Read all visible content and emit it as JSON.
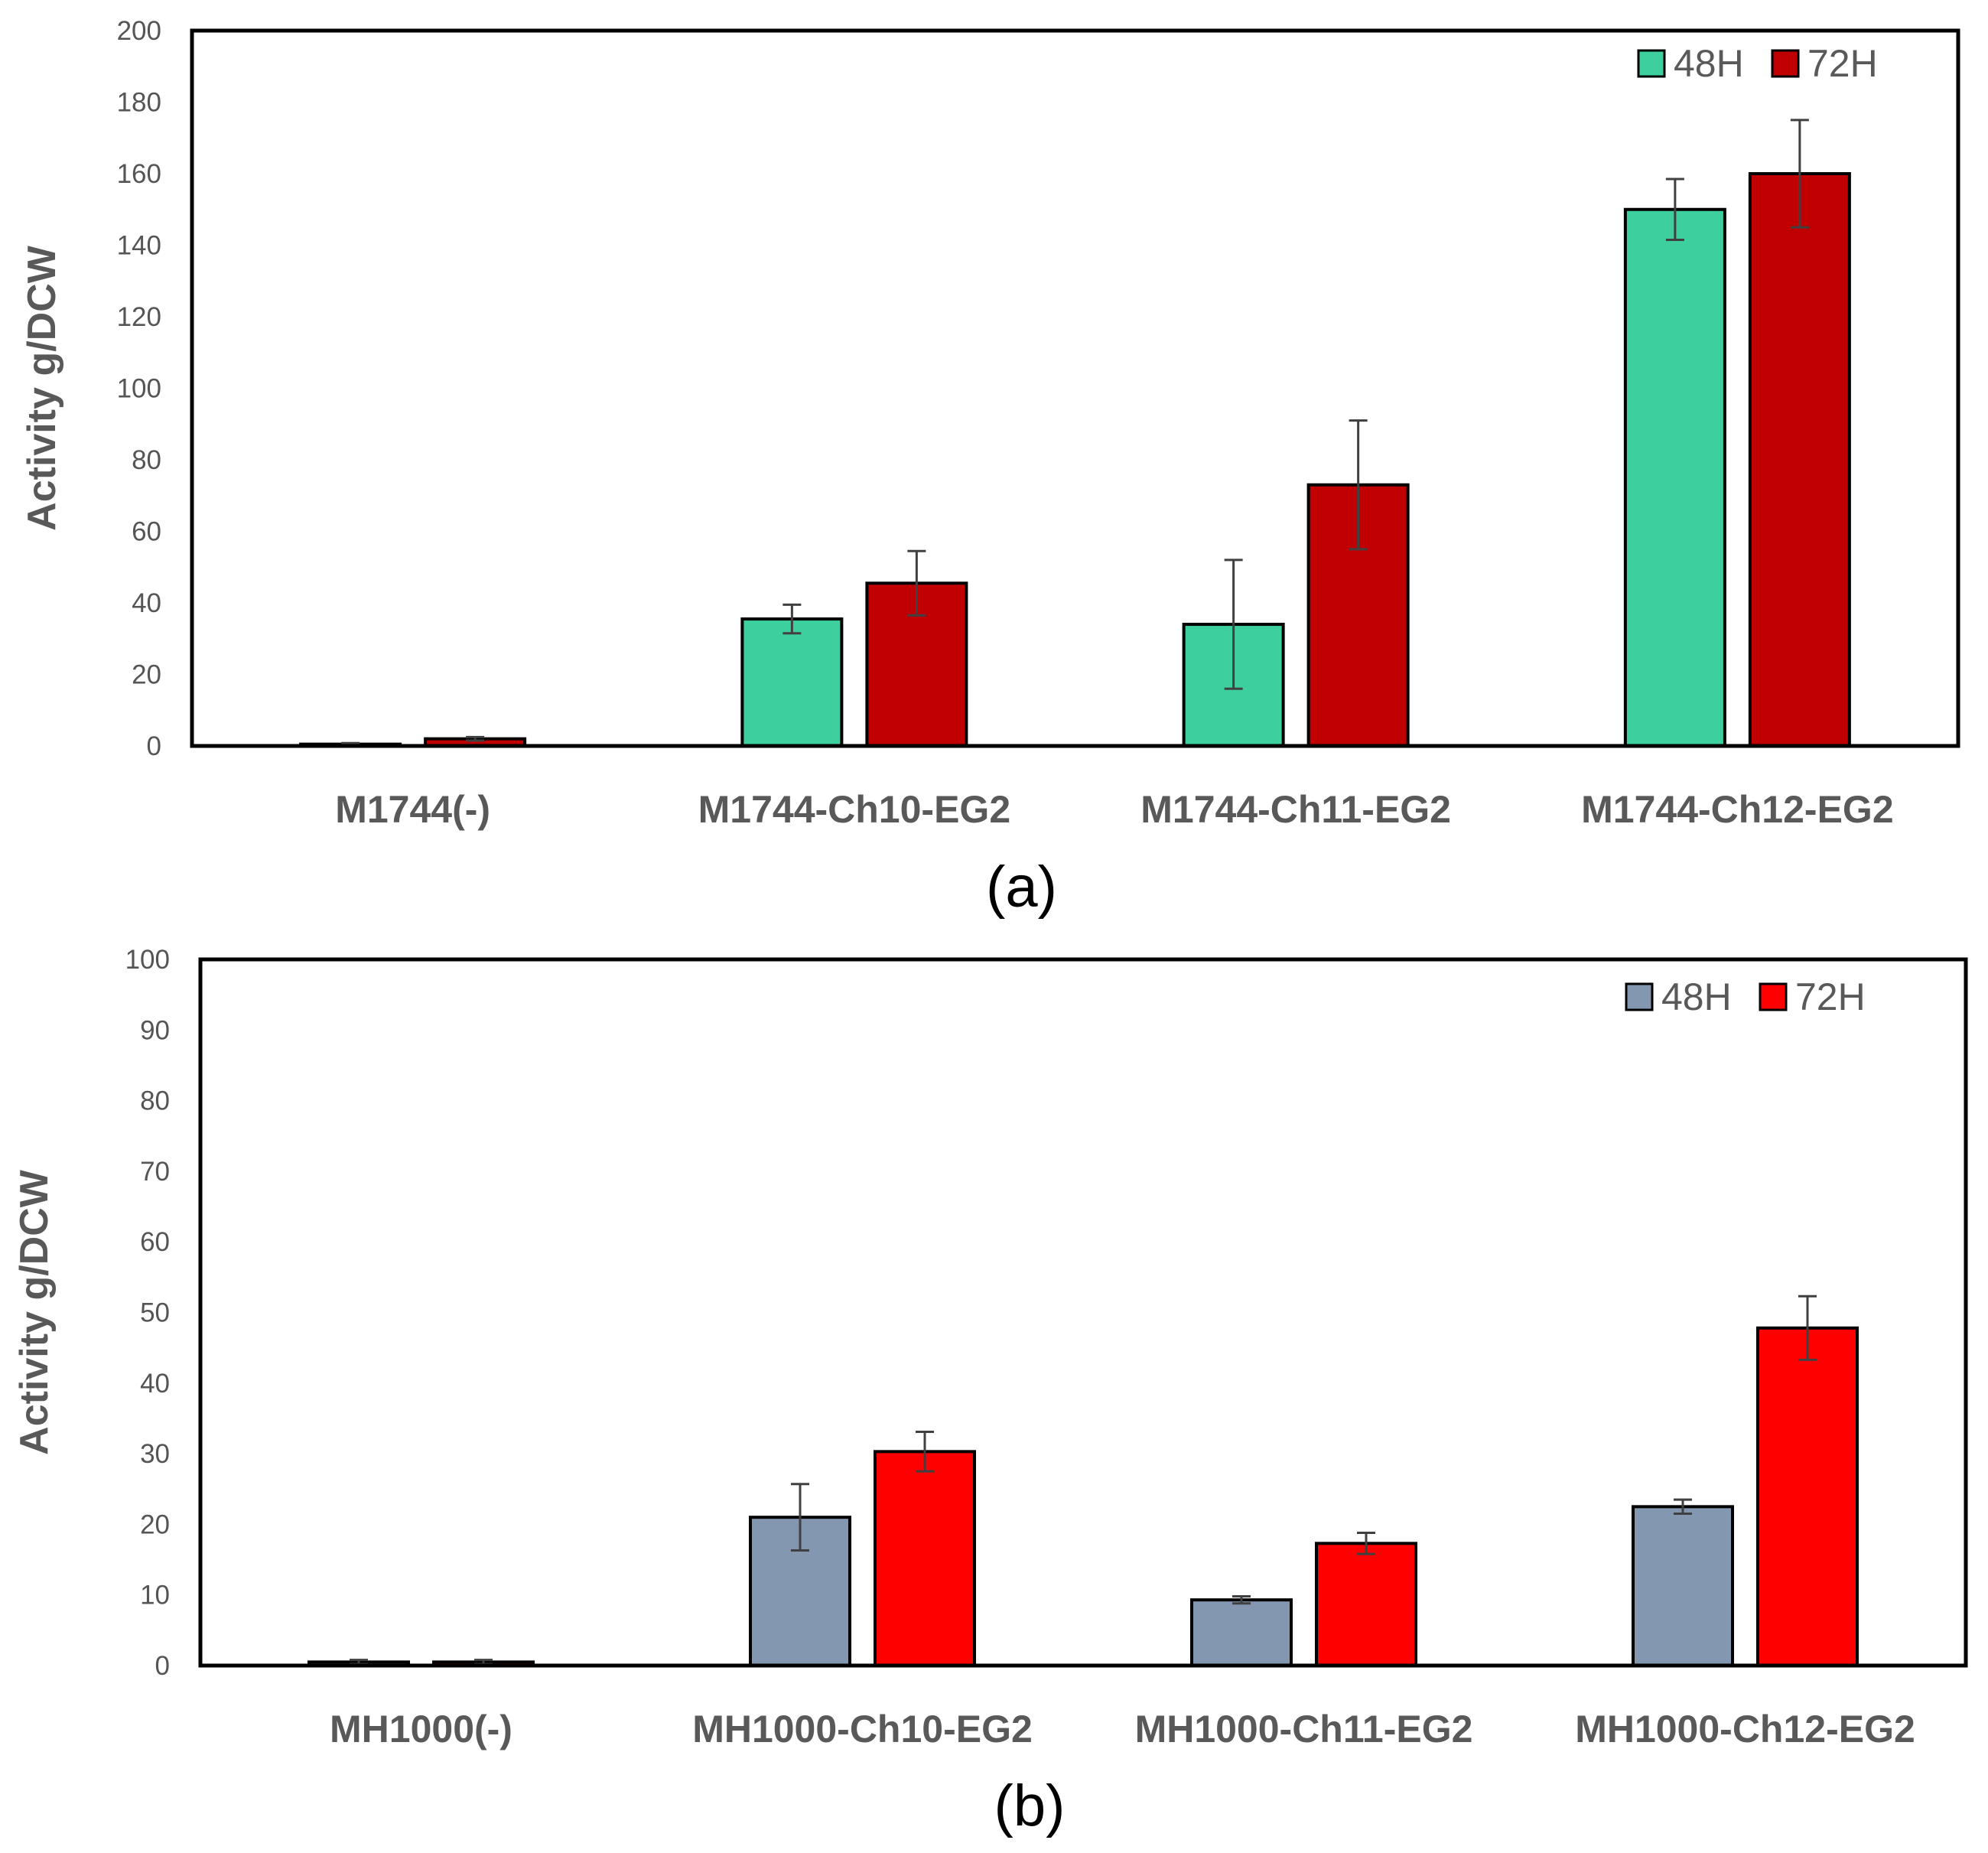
{
  "chart_data": [
    {
      "type": "bar",
      "panel_label": "(a)",
      "ylabel": "Activity g/DCW",
      "ylim": [
        0,
        200
      ],
      "yticks": [
        0,
        20,
        40,
        60,
        80,
        100,
        120,
        140,
        160,
        180,
        200
      ],
      "categories": [
        "M1744(-)",
        "M1744-Ch10-EG2",
        "M1744-Ch11-EG2",
        "M1744-Ch12-EG2"
      ],
      "legend_position": "top-right",
      "series": [
        {
          "name": "48H",
          "color": "#3ECF9E",
          "values": [
            0.5,
            35.5,
            34,
            150
          ],
          "errors": [
            0.3,
            4,
            18,
            8.5
          ]
        },
        {
          "name": "72H",
          "color": "#C00000",
          "values": [
            2,
            45.5,
            73,
            160
          ],
          "errors": [
            0.5,
            9,
            18,
            15
          ]
        }
      ]
    },
    {
      "type": "bar",
      "panel_label": "(b)",
      "ylabel": "Activity g/DCW",
      "ylim": [
        0,
        100
      ],
      "yticks": [
        0,
        10,
        20,
        30,
        40,
        50,
        60,
        70,
        80,
        90,
        100
      ],
      "categories": [
        "MH1000(-)",
        "MH1000-Ch10-EG2",
        "MH1000-Ch11-EG2",
        "MH1000-Ch12-EG2"
      ],
      "legend_position": "top-right",
      "series": [
        {
          "name": "48H",
          "color": "#8497B0",
          "values": [
            0.5,
            21,
            9.3,
            22.5
          ],
          "errors": [
            0.3,
            4.7,
            0.5,
            1.0
          ]
        },
        {
          "name": "72H",
          "color": "#FF0000",
          "values": [
            0.5,
            30.3,
            17.3,
            47.8
          ],
          "errors": [
            0.3,
            2.8,
            1.5,
            4.5
          ]
        }
      ]
    }
  ]
}
